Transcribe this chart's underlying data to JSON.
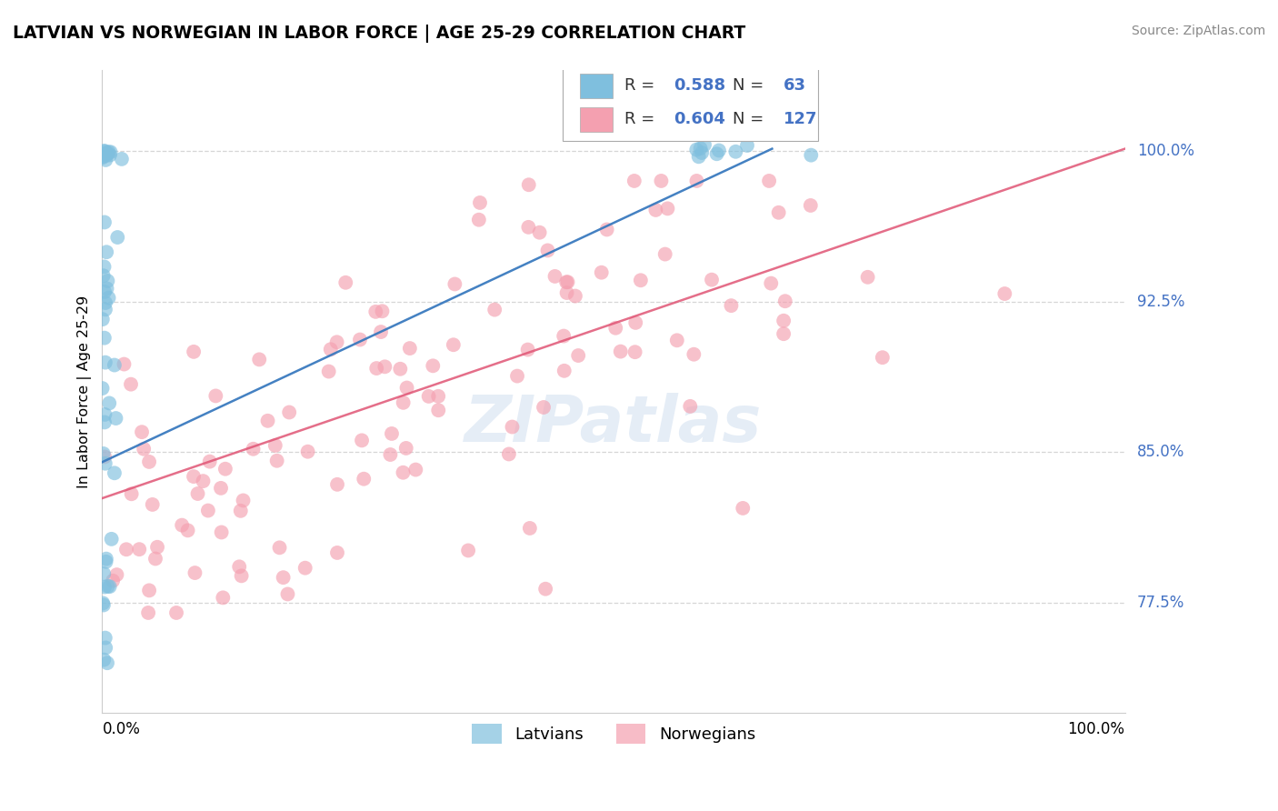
{
  "title": "LATVIAN VS NORWEGIAN IN LABOR FORCE | AGE 25-29 CORRELATION CHART",
  "source_text": "Source: ZipAtlas.com",
  "ylabel": "In Labor Force | Age 25-29",
  "xlim": [
    0.0,
    1.0
  ],
  "ylim": [
    0.72,
    1.04
  ],
  "yticks": [
    0.775,
    0.85,
    0.925,
    1.0
  ],
  "ytick_labels": [
    "77.5%",
    "85.0%",
    "92.5%",
    "100.0%"
  ],
  "xtick_labels": [
    "0.0%",
    "100.0%"
  ],
  "xticks": [
    0.0,
    1.0
  ],
  "R_latvian": 0.588,
  "N_latvian": 63,
  "R_norwegian": 0.604,
  "N_norwegian": 127,
  "latvian_color": "#7fbfde",
  "norwegian_color": "#f4a0b0",
  "latvian_line_color": "#3a7abf",
  "norwegian_line_color": "#e05575",
  "label_color": "#4472c4",
  "background_color": "#ffffff",
  "grid_color": "#cccccc",
  "nor_line_x0": 0.0,
  "nor_line_y0": 0.827,
  "nor_line_x1": 1.0,
  "nor_line_y1": 1.001,
  "lat_line_x0": 0.0,
  "lat_line_y0": 0.845,
  "lat_line_x1": 0.655,
  "lat_line_y1": 1.001
}
